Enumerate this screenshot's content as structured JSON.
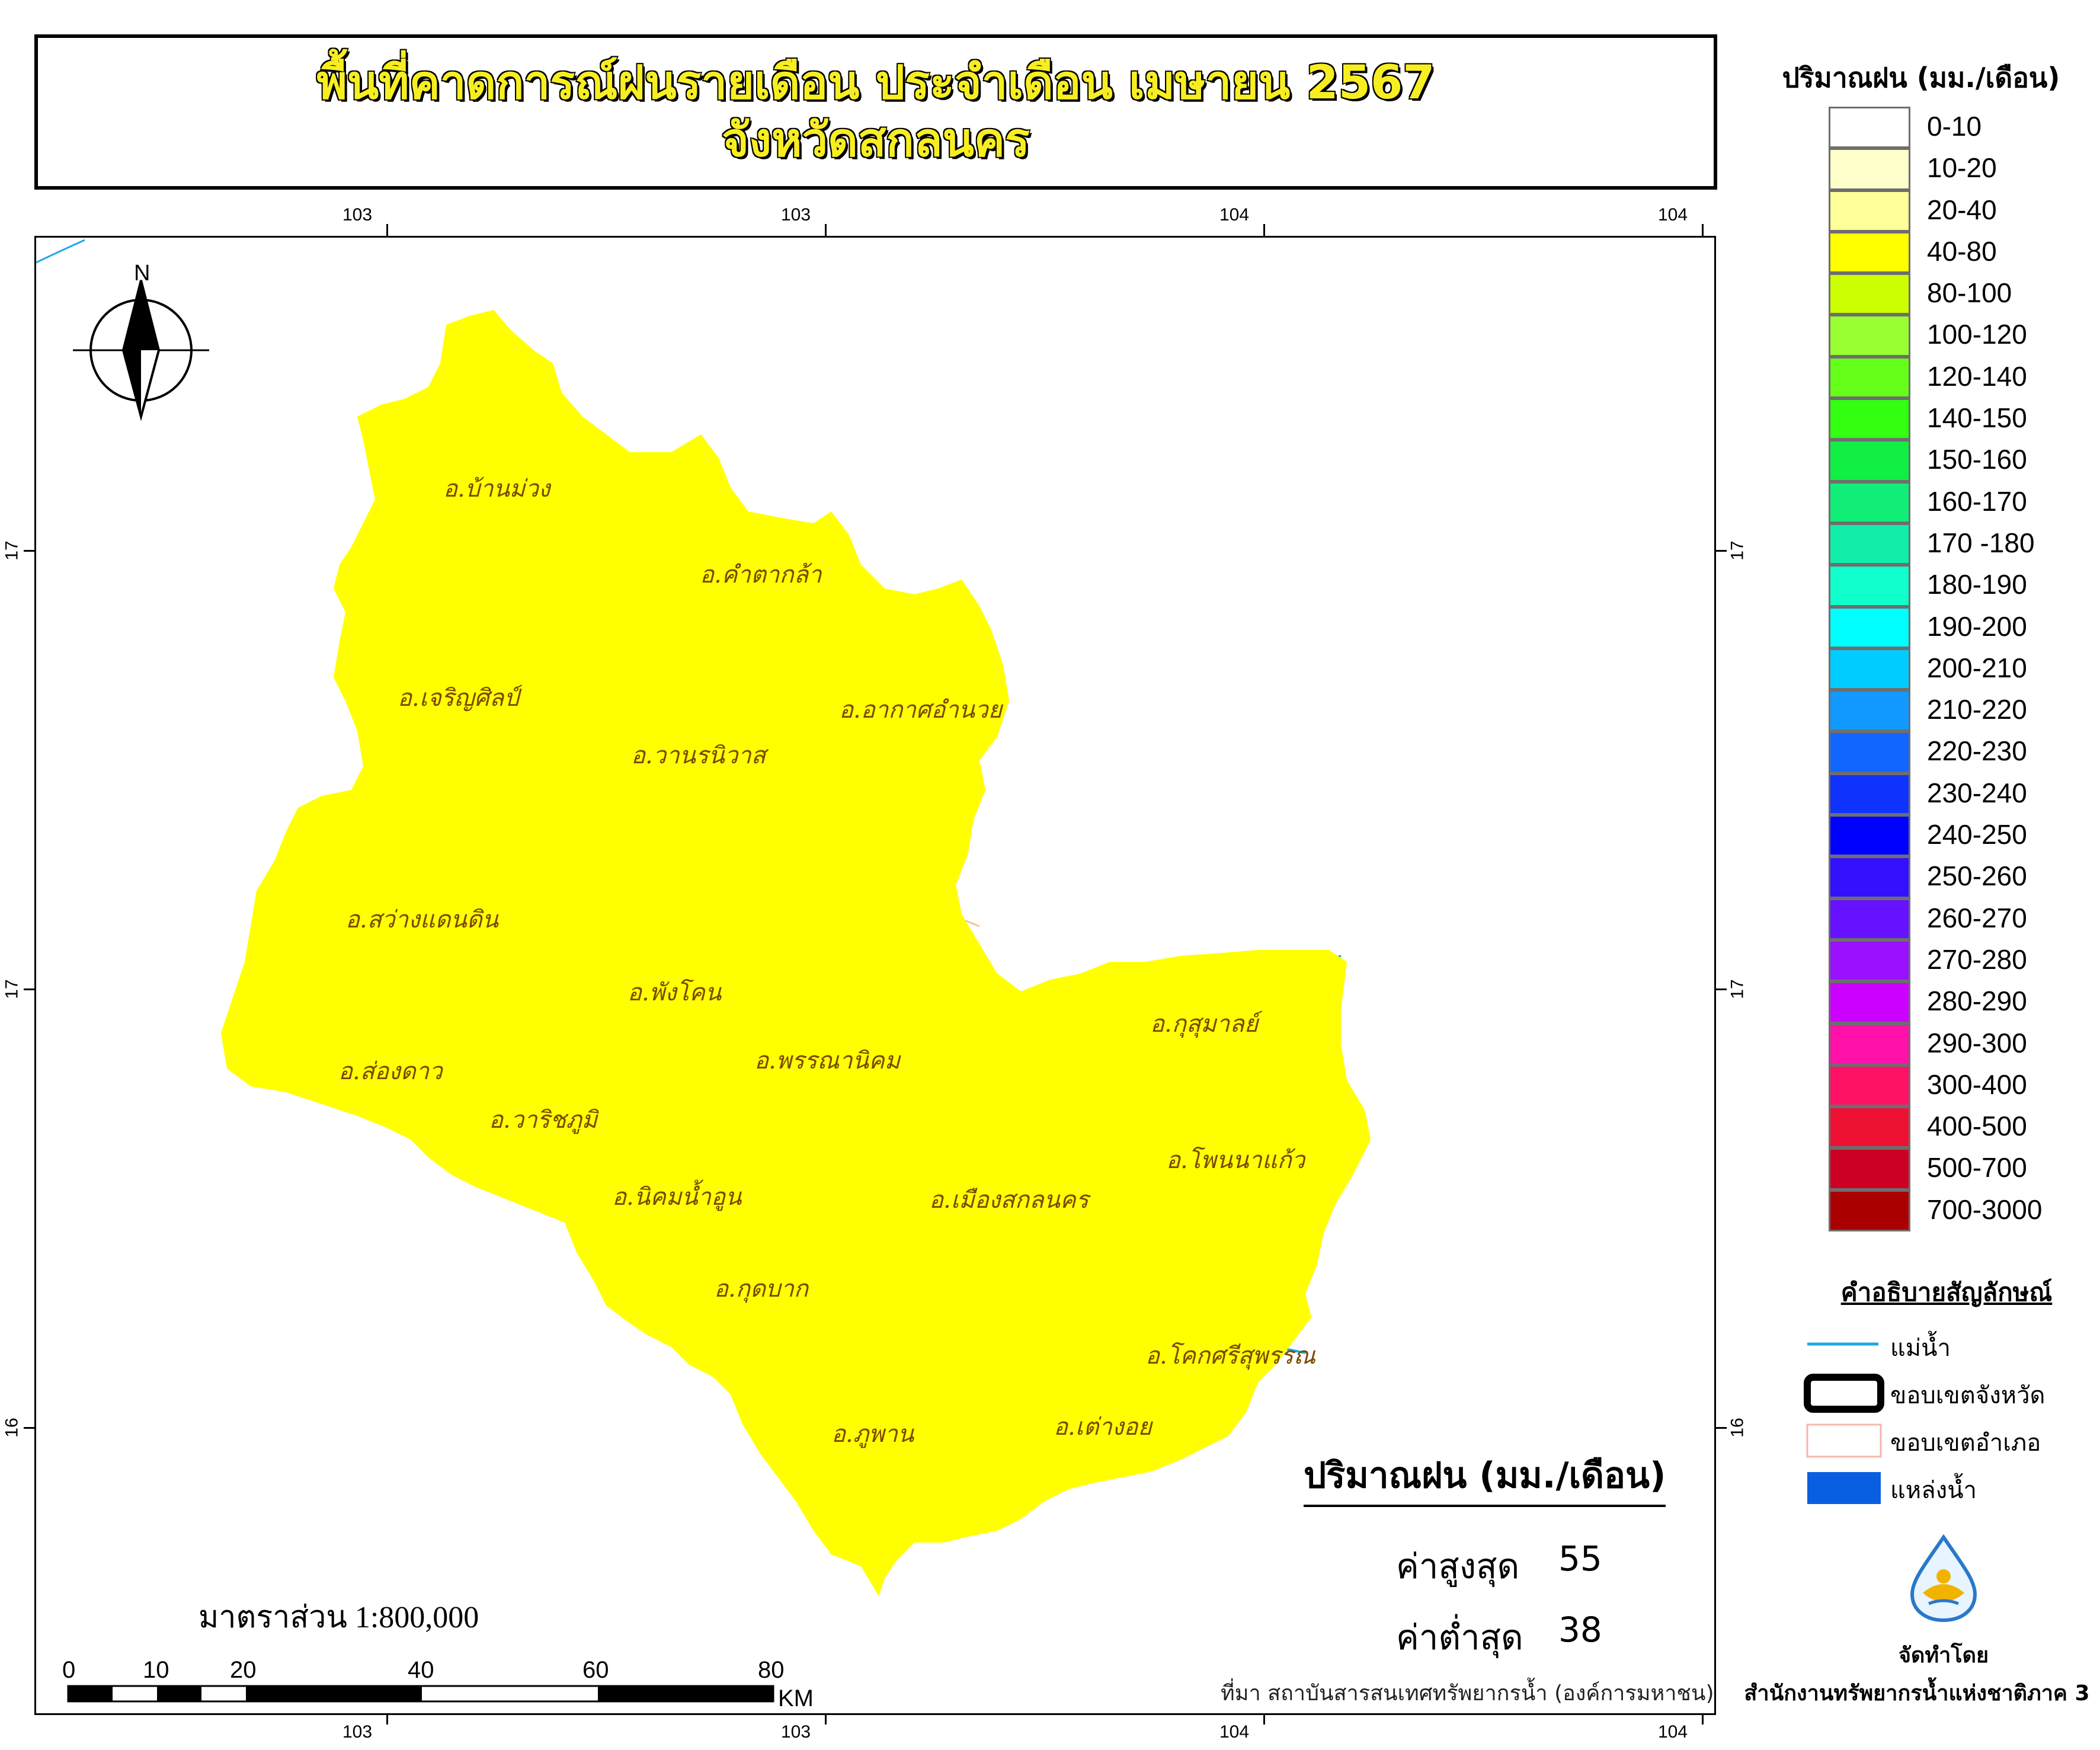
{
  "title": {
    "line1": "พื้นที่คาดการณ์ฝนรายเดือน ประจำเดือน เมษายน 2567",
    "line2": "จังหวัดสกลนคร"
  },
  "grid": {
    "top_labels": [
      "103",
      "103",
      "104",
      "104"
    ],
    "bottom_labels": [
      "103",
      "103",
      "104",
      "104"
    ],
    "left_labels": [
      "17",
      "17",
      "16"
    ],
    "right_labels": [
      "17",
      "17",
      "16"
    ]
  },
  "north_arrow": {
    "label": "N"
  },
  "legend": {
    "title": "ปริมาณฝน (มม./เดือน)",
    "classes": [
      {
        "label": "0-10",
        "color": "#ffffff"
      },
      {
        "label": "10-20",
        "color": "#ffffcc"
      },
      {
        "label": "20-40",
        "color": "#ffff99"
      },
      {
        "label": "40-80",
        "color": "#ffff00"
      },
      {
        "label": "80-100",
        "color": "#ccff00"
      },
      {
        "label": "100-120",
        "color": "#99ff33"
      },
      {
        "label": "120-140",
        "color": "#66ff1a"
      },
      {
        "label": "140-150",
        "color": "#33ff11"
      },
      {
        "label": "150-160",
        "color": "#11ee44"
      },
      {
        "label": "160-170",
        "color": "#11ee77"
      },
      {
        "label": "170 -180",
        "color": "#11eeaa"
      },
      {
        "label": "180-190",
        "color": "#11ffcc"
      },
      {
        "label": "190-200",
        "color": "#00ffff"
      },
      {
        "label": "200-210",
        "color": "#00ccff"
      },
      {
        "label": "210-220",
        "color": "#1199ff"
      },
      {
        "label": "220-230",
        "color": "#1166ff"
      },
      {
        "label": "230-240",
        "color": "#1133ff"
      },
      {
        "label": "240-250",
        "color": "#0000ff"
      },
      {
        "label": "250-260",
        "color": "#3311ff"
      },
      {
        "label": "260-270",
        "color": "#6611ff"
      },
      {
        "label": "270-280",
        "color": "#9911ff"
      },
      {
        "label": "280-290",
        "color": "#cc00ff"
      },
      {
        "label": "290-300",
        "color": "#ff11aa"
      },
      {
        "label": "300-400",
        "color": "#ff1166"
      },
      {
        "label": "400-500",
        "color": "#ee1133"
      },
      {
        "label": "500-700",
        "color": "#cc0022"
      },
      {
        "label": "700-3000",
        "color": "#aa0000"
      }
    ]
  },
  "symbols": {
    "title": "คำอธิบายสัญลักษณ์",
    "items": [
      {
        "label": "แม่น้ำ",
        "kind": "river-line",
        "color": "#1ea8e8"
      },
      {
        "label": "ขอบเขตจังหวัด",
        "kind": "province-boundary",
        "color": "#000000"
      },
      {
        "label": "ขอบเขตอำเภอ",
        "kind": "district-boundary",
        "color": "#f5b8a8"
      },
      {
        "label": "แหล่งน้ำ",
        "kind": "water-body",
        "color": "#0a5ee0"
      }
    ]
  },
  "stats": {
    "title": "ปริมาณฝน (มม./เดือน)",
    "max_label": "ค่าสูงสุด",
    "max_value": "55",
    "min_label": "ค่าต่ำสุด",
    "min_value": "38"
  },
  "scale": {
    "text": "มาตราส่วน  1:800,000",
    "labels": [
      "0",
      "10",
      "20",
      "40",
      "60",
      "80"
    ],
    "unit": "KM"
  },
  "source": "ที่มา  สถาบันสารสนเทศทรัพยากรน้ำ (องค์การมหาชน)",
  "credits": {
    "made_by": "จัดทำโดย",
    "org": "สำนักงานทรัพยากรน้ำแห่งชาติภาค 3"
  },
  "colors": {
    "province_fill": "#ffff00",
    "light_patch": "#ffff99",
    "river": "#1ea8e8",
    "water": "#0a5ee0",
    "district_line": "#f0b070"
  },
  "districts": [
    "อ.บ้านม่วง",
    "อ.คำตากล้า",
    "อ.เจริญศิลป์",
    "อ.อากาศอำนวย",
    "อ.วานรนิวาส",
    "อ.สว่างแดนดิน",
    "อ.พังโคน",
    "อ.ส่องดาว",
    "อ.พรรณานิคม",
    "อ.กุสุมาลย์",
    "อ.วาริชภูมิ",
    "อ.นิคมน้ำอูน",
    "อ.เมืองสกลนคร",
    "อ.โพนนาแก้ว",
    "อ.กุดบาก",
    "อ.โคกศรีสุพรรณ",
    "อ.ภูพาน",
    "อ.เต่างอย"
  ]
}
